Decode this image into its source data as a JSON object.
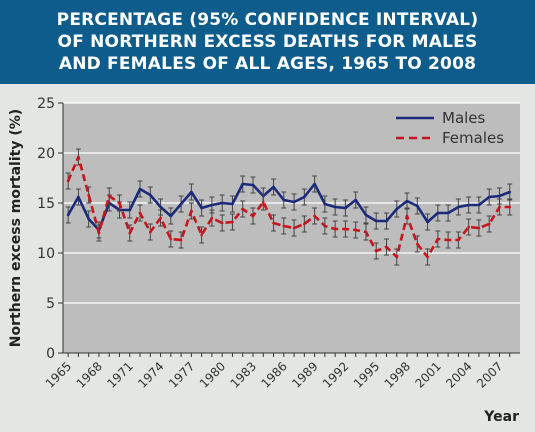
{
  "chart_data": {
    "type": "line",
    "title": [
      "PERCENTAGE (95% CONFIDENCE INTERVAL)",
      "OF NORTHERN EXCESS DEATHS FOR MALES",
      "AND FEMALES OF ALL AGES, 1965 TO 2008"
    ],
    "xlabel": "Year",
    "ylabel": "Northern excess mortality (%)",
    "x": [
      1965,
      1966,
      1967,
      1968,
      1969,
      1970,
      1971,
      1972,
      1973,
      1974,
      1975,
      1976,
      1977,
      1978,
      1979,
      1980,
      1981,
      1982,
      1983,
      1984,
      1985,
      1986,
      1987,
      1988,
      1989,
      1990,
      1991,
      1992,
      1993,
      1994,
      1995,
      1996,
      1997,
      1998,
      1999,
      2000,
      2001,
      2002,
      2003,
      2004,
      2005,
      2006,
      2007,
      2008
    ],
    "xticks": [
      1965,
      1968,
      1971,
      1974,
      1977,
      1980,
      1983,
      1986,
      1989,
      1992,
      1995,
      1998,
      2001,
      2004,
      2007
    ],
    "xlim": [
      1964.5,
      2009
    ],
    "ylim": [
      0,
      25
    ],
    "yticks": [
      0,
      5,
      10,
      15,
      20,
      25
    ],
    "grid": true,
    "legend_position": "top-right",
    "series": [
      {
        "name": "Males",
        "color": "#1b2a7a",
        "style": "solid",
        "values": [
          13.8,
          15.6,
          13.4,
          12.3,
          15.0,
          14.3,
          14.3,
          16.4,
          15.8,
          14.6,
          13.7,
          14.9,
          16.1,
          14.5,
          14.8,
          15.0,
          14.9,
          16.9,
          16.8,
          15.7,
          16.6,
          15.3,
          15.1,
          15.6,
          16.9,
          14.9,
          14.6,
          14.5,
          15.3,
          13.8,
          13.2,
          13.2,
          14.4,
          15.2,
          14.7,
          13.1,
          14.0,
          14.0,
          14.6,
          14.8,
          14.8,
          15.6,
          15.7,
          16.1
        ],
        "error": 0.8
      },
      {
        "name": "Females",
        "color": "#c4161c",
        "style": "dashed",
        "values": [
          17.2,
          19.6,
          15.8,
          12.0,
          15.7,
          15.0,
          12.0,
          14.0,
          12.1,
          13.5,
          11.4,
          11.3,
          14.2,
          11.8,
          13.5,
          13.0,
          13.1,
          14.4,
          13.7,
          15.1,
          13.0,
          12.7,
          12.5,
          12.9,
          13.7,
          12.7,
          12.4,
          12.4,
          12.3,
          12.1,
          10.2,
          10.6,
          9.6,
          13.7,
          10.9,
          9.6,
          11.4,
          11.3,
          11.3,
          12.6,
          12.5,
          12.9,
          14.6,
          14.6
        ],
        "error": 0.8
      }
    ]
  }
}
